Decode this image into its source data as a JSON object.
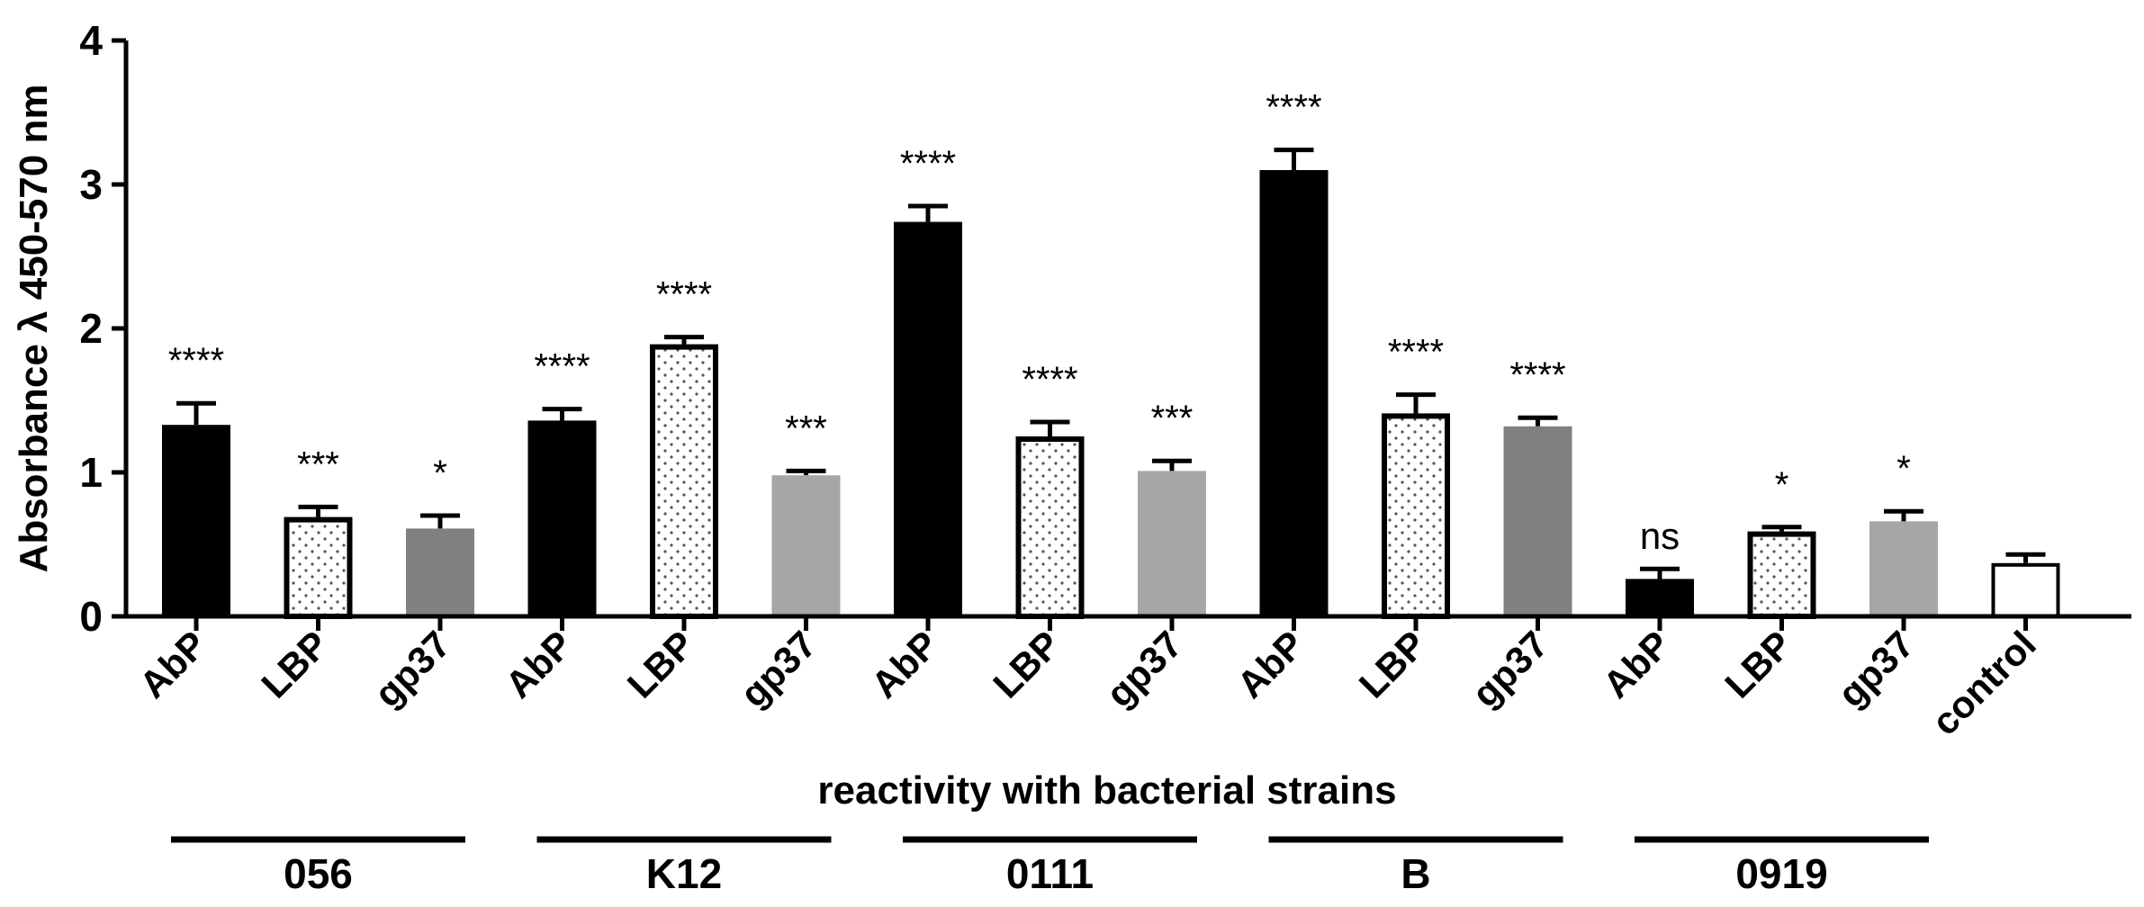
{
  "chart_data": {
    "type": "bar",
    "ylabel": "Absorbance λ 450-570 nm",
    "xlabel": "reactivity with bacterial strains",
    "ylim": [
      0,
      4
    ],
    "yticks": [
      "0",
      "1",
      "2",
      "3",
      "4"
    ],
    "categories": [
      "AbP",
      "LBP",
      "gp37",
      "AbP",
      "LBP",
      "gp37",
      "AbP",
      "LBP",
      "gp37",
      "AbP",
      "LBP",
      "gp37",
      "AbP",
      "LBP",
      "gp37",
      "control"
    ],
    "values": [
      1.33,
      0.69,
      0.61,
      1.36,
      1.89,
      0.98,
      2.74,
      1.25,
      1.01,
      3.1,
      1.41,
      1.32,
      0.26,
      0.59,
      0.66,
      0.37
    ],
    "errors": [
      0.15,
      0.07,
      0.09,
      0.08,
      0.05,
      0.03,
      0.11,
      0.1,
      0.07,
      0.14,
      0.13,
      0.06,
      0.07,
      0.03,
      0.07,
      0.06
    ],
    "significance": [
      "****",
      "***",
      "*",
      "****",
      "****",
      "***",
      "****",
      "****",
      "***",
      "****",
      "****",
      "****",
      "ns",
      "*",
      "*",
      ""
    ],
    "bar_styles": [
      "black",
      "dotted",
      "darkgray",
      "black",
      "dotted",
      "lightgray",
      "black",
      "dotted",
      "lightgray",
      "black",
      "dotted",
      "darkgray",
      "black",
      "dotted",
      "lightgray",
      "white"
    ],
    "groups": [
      {
        "label": "056",
        "span": [
          0,
          2
        ]
      },
      {
        "label": "K12",
        "span": [
          3,
          5
        ]
      },
      {
        "label": "0111",
        "span": [
          6,
          8
        ]
      },
      {
        "label": "B",
        "span": [
          9,
          11
        ]
      },
      {
        "label": "0919",
        "span": [
          12,
          14
        ]
      }
    ],
    "colors": {
      "black": "#000000",
      "darkgray": "#808080",
      "lightgray": "#a6a6a8",
      "white": "#ffffff",
      "dots": "#555555"
    },
    "grid": false
  }
}
